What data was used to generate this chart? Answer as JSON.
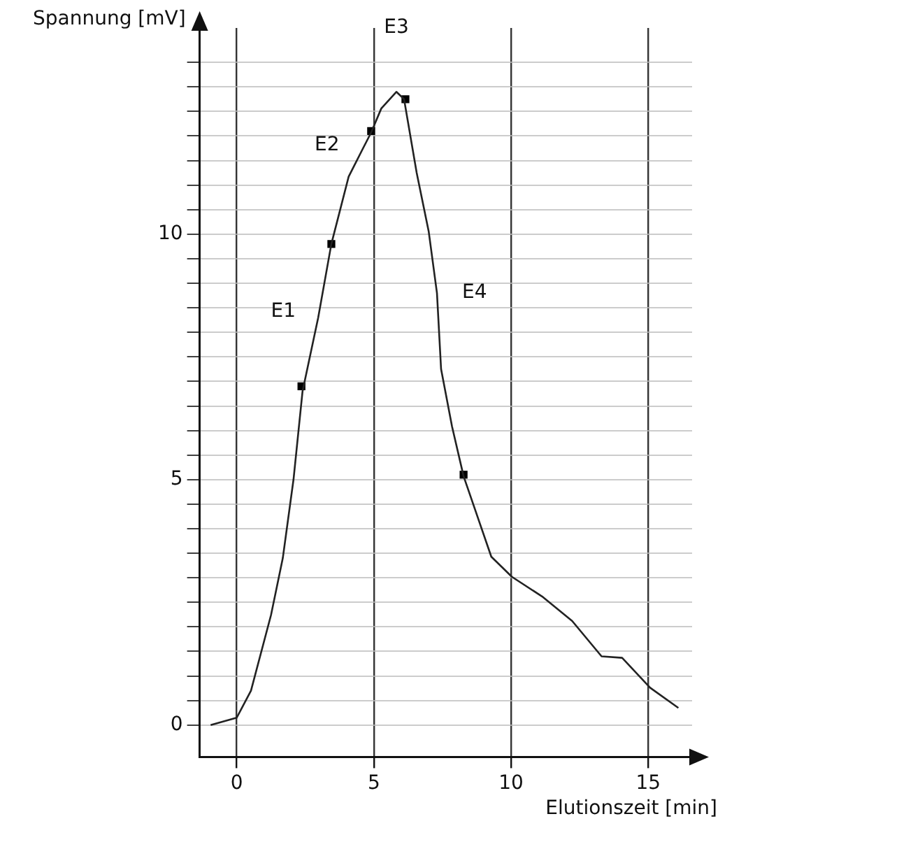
{
  "chart_data": {
    "type": "line",
    "xlabel": "Elutionszeit [min]",
    "ylabel": "Spannung [mV]",
    "xlim": [
      -1.35,
      16.6
    ],
    "ylim": [
      -0.65,
      14.2
    ],
    "xticks": [
      0,
      5,
      10,
      15
    ],
    "yticks": [
      0,
      {
        "value": 0.5,
        "label": null
      },
      {
        "value": 1,
        "label": null
      },
      {
        "value": 1.5,
        "label": null
      },
      {
        "value": 2,
        "label": null
      },
      {
        "value": 2.5,
        "label": null
      },
      {
        "value": 3,
        "label": null
      },
      {
        "value": 3.5,
        "label": null
      },
      {
        "value": 4,
        "label": null
      },
      {
        "value": 4.5,
        "label": null
      },
      5,
      {
        "value": 5.5,
        "label": null
      },
      {
        "value": 6,
        "label": null
      },
      {
        "value": 6.5,
        "label": null
      },
      {
        "value": 7,
        "label": null
      },
      {
        "value": 7.5,
        "label": null
      },
      {
        "value": 8,
        "label": null
      },
      {
        "value": 8.5,
        "label": null
      },
      {
        "value": 9,
        "label": null
      },
      {
        "value": 9.5,
        "label": null
      },
      10,
      {
        "value": 10.5,
        "label": null
      },
      {
        "value": 11,
        "label": null
      },
      {
        "value": 11.5,
        "label": null
      },
      {
        "value": 12,
        "label": null
      },
      {
        "value": 12.5,
        "label": null
      },
      {
        "value": 13,
        "label": null
      },
      {
        "value": 13.5,
        "label": null
      }
    ],
    "grid": true,
    "marker": "none",
    "line_style": "solid",
    "series": [
      {
        "color": "#222222",
        "x": [
          -0.95,
          0,
          0.52,
          1.25,
          1.68,
          2.07,
          2.4,
          2.97,
          3.45,
          4.08,
          4.56,
          4.9,
          5.27,
          5.82,
          6.1,
          6.56,
          7.0,
          7.3,
          7.45,
          7.85,
          8.27,
          9.28,
          10.03,
          11.13,
          12.23,
          13.3,
          14.05,
          15.07,
          16.1
        ],
        "values": [
          0,
          0.15,
          0.7,
          2.24,
          3.4,
          5.0,
          6.8,
          8.3,
          9.8,
          11.17,
          11.7,
          12.07,
          12.56,
          12.9,
          12.75,
          11.25,
          10.05,
          8.8,
          7.25,
          6.08,
          5.07,
          3.43,
          3.02,
          2.62,
          2.12,
          1.4,
          1.37,
          0.76,
          0.35
        ]
      },
      {
        "type": "scatter",
        "color": "#000000",
        "marker": "square",
        "x": [
          2.36,
          3.45,
          4.9,
          6.15,
          8.27
        ],
        "values": [
          6.9,
          9.8,
          12.1,
          12.75,
          5.1
        ]
      }
    ],
    "annotations": [
      {
        "text": "E1",
        "x": 2.97,
        "y": 8.3
      },
      {
        "text": "E2",
        "x": 4.56,
        "y": 11.7
      },
      {
        "text": "E3",
        "x": 5.82,
        "y": 12.9
      },
      {
        "text": "E4",
        "x": 7.3,
        "y": 8.8
      }
    ]
  }
}
